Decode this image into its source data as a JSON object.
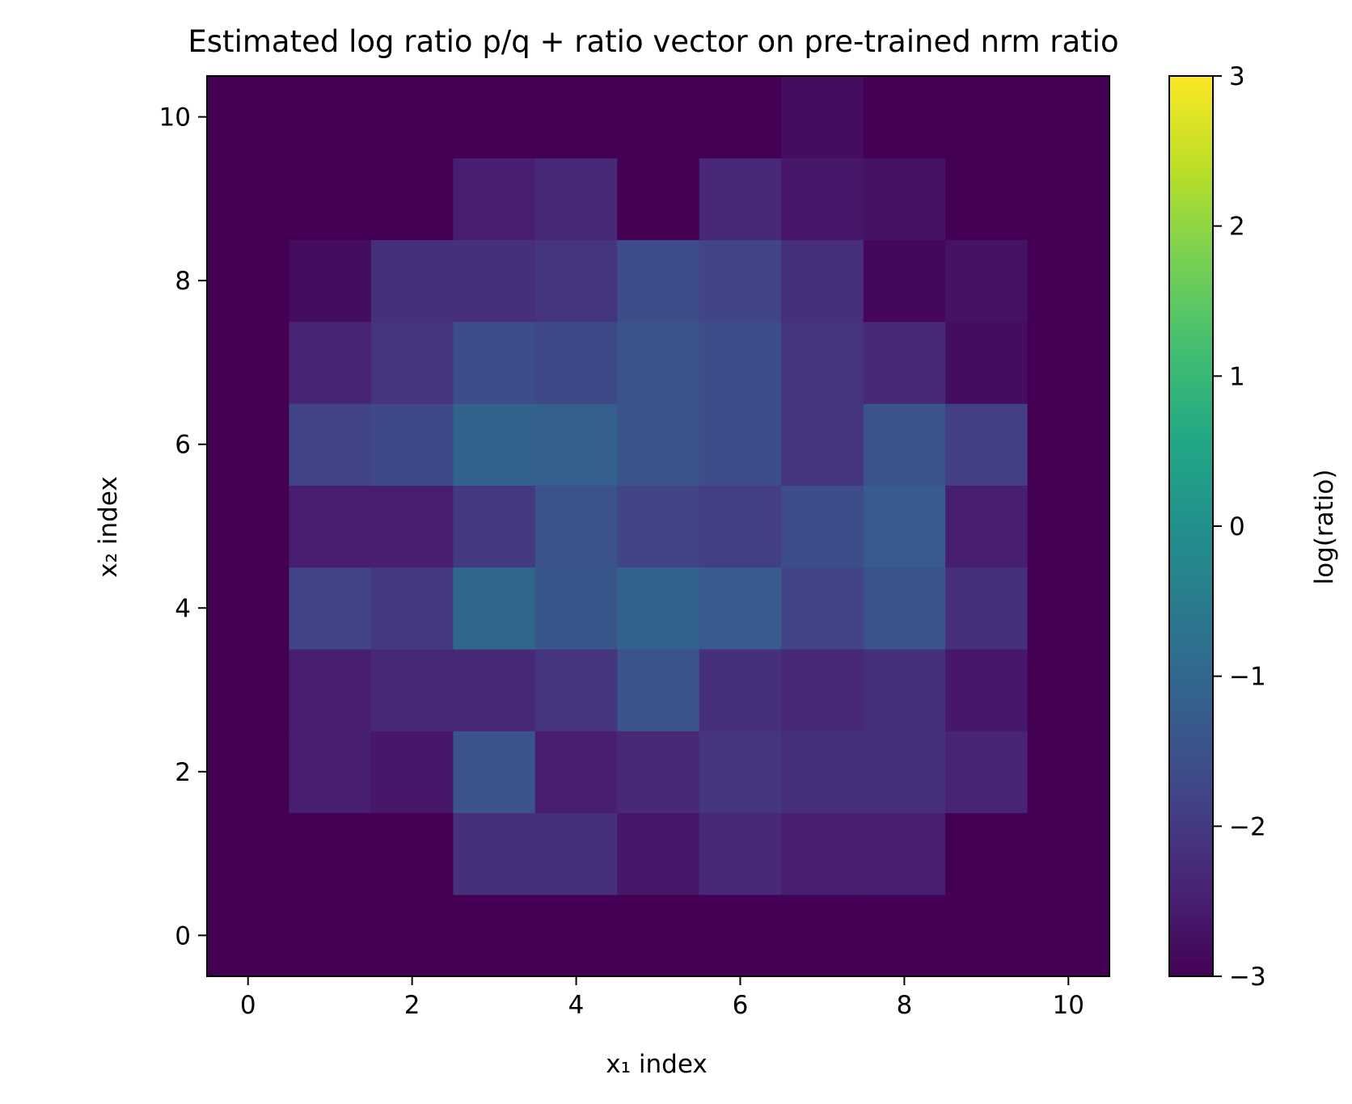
{
  "chart_data": {
    "type": "heatmap",
    "title": "Estimated log ratio p/q + ratio vector on pre-trained nrm ratio",
    "xlabel": "x₁ index",
    "ylabel": "x₂ index",
    "colorbar_label": "log(ratio)",
    "colormap": "viridis",
    "clim": [
      -3,
      3
    ],
    "xlim": [
      -0.5,
      10.5
    ],
    "ylim": [
      -0.5,
      10.5
    ],
    "x_ticks": [
      0,
      2,
      4,
      6,
      8,
      10
    ],
    "y_ticks": [
      0,
      2,
      4,
      6,
      8,
      10
    ],
    "colorbar_ticks": [
      3,
      2,
      1,
      0,
      -1,
      -2,
      -3
    ],
    "tick_labels": {
      "x": [
        "0",
        "2",
        "4",
        "6",
        "8",
        "10"
      ],
      "y": [
        "0",
        "2",
        "4",
        "6",
        "8",
        "10"
      ],
      "colorbar": [
        "3",
        "2",
        "1",
        "0",
        "−1",
        "−2",
        "−3"
      ]
    },
    "grid": false,
    "rows_note": "values[j][i] is the cell at x₁ = i, x₂ = j",
    "values": [
      [
        -3.0,
        -3.0,
        -3.0,
        -3.0,
        -3.0,
        -3.0,
        -3.0,
        -3.0,
        -3.0,
        -3.0,
        -3.0
      ],
      [
        -3.0,
        -3.0,
        -3.0,
        -2.2,
        -2.2,
        -2.6,
        -2.3,
        -2.5,
        -2.5,
        -3.0,
        -3.0
      ],
      [
        -3.0,
        -2.5,
        -2.6,
        -1.5,
        -2.5,
        -2.3,
        -2.1,
        -2.2,
        -2.2,
        -2.4,
        -3.0
      ],
      [
        -3.0,
        -2.5,
        -2.3,
        -2.3,
        -2.1,
        -1.5,
        -2.2,
        -2.3,
        -2.2,
        -2.6,
        -3.0
      ],
      [
        -3.0,
        -1.8,
        -2.0,
        -1.0,
        -1.4,
        -1.1,
        -1.3,
        -1.8,
        -1.5,
        -2.2,
        -3.0
      ],
      [
        -3.0,
        -2.5,
        -2.5,
        -2.0,
        -1.5,
        -1.8,
        -1.9,
        -1.6,
        -1.3,
        -2.5,
        -3.0
      ],
      [
        -3.0,
        -1.8,
        -1.7,
        -1.1,
        -1.2,
        -1.5,
        -1.6,
        -2.1,
        -1.5,
        -1.9,
        -3.0
      ],
      [
        -3.0,
        -2.4,
        -2.1,
        -1.6,
        -1.7,
        -1.5,
        -1.6,
        -2.1,
        -2.3,
        -2.8,
        -3.0
      ],
      [
        -3.0,
        -2.8,
        -2.2,
        -2.2,
        -2.1,
        -1.6,
        -1.8,
        -2.2,
        -2.9,
        -2.7,
        -3.0
      ],
      [
        -3.0,
        -3.0,
        -3.0,
        -2.5,
        -2.3,
        -3.0,
        -2.3,
        -2.6,
        -2.7,
        -3.0,
        -3.0
      ],
      [
        -3.0,
        -3.0,
        -3.0,
        -3.0,
        -3.0,
        -3.0,
        -3.0,
        -2.8,
        -3.0,
        -3.0,
        -3.0
      ]
    ]
  }
}
